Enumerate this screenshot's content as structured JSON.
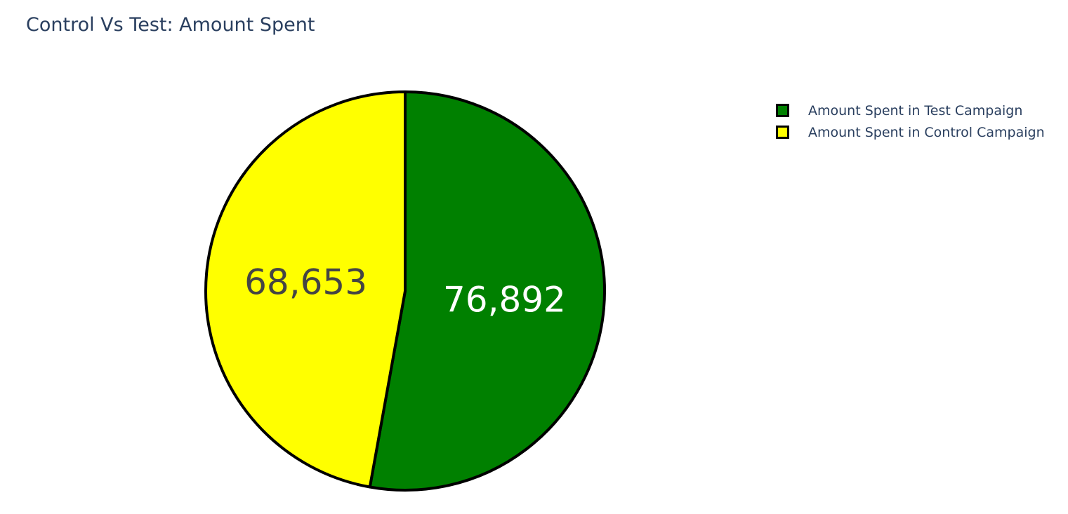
{
  "chart_data": {
    "type": "pie",
    "title": "Control Vs Test: Amount Spent",
    "labels": [
      "Amount Spent in Test Campaign",
      "Amount Spent in Control Campaign"
    ],
    "values": [
      76892,
      68653
    ],
    "value_labels": [
      "76,892",
      "68,653"
    ],
    "colors": [
      "#008000",
      "#ffff00"
    ],
    "text_colors": [
      "#ffffff",
      "#444444"
    ],
    "slice_border_color": "#000000",
    "legend_position": "top-right",
    "direction": "clockwise",
    "start": "top"
  }
}
